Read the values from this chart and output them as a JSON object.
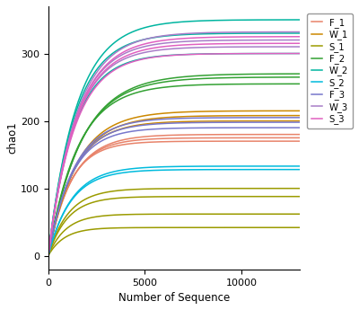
{
  "series": [
    {
      "label": "F_1",
      "color": "#E8836A",
      "curves": [
        {
          "A": 170,
          "k": 0.0009
        },
        {
          "A": 175,
          "k": 0.00085
        },
        {
          "A": 180,
          "k": 0.0008
        }
      ]
    },
    {
      "label": "W_1",
      "color": "#CC8800",
      "curves": [
        {
          "A": 200,
          "k": 0.00075
        },
        {
          "A": 208,
          "k": 0.0007
        },
        {
          "A": 215,
          "k": 0.00068
        }
      ]
    },
    {
      "label": "S_1",
      "color": "#9B9B00",
      "curves": [
        {
          "A": 42,
          "k": 0.0012
        },
        {
          "A": 62,
          "k": 0.0011
        },
        {
          "A": 88,
          "k": 0.001
        },
        {
          "A": 100,
          "k": 0.00095
        }
      ]
    },
    {
      "label": "F_2",
      "color": "#33A133",
      "curves": [
        {
          "A": 255,
          "k": 0.00065
        },
        {
          "A": 265,
          "k": 0.0006
        },
        {
          "A": 270,
          "k": 0.00058
        }
      ]
    },
    {
      "label": "W_2",
      "color": "#00B5A0",
      "curves": [
        {
          "A": 300,
          "k": 0.00075
        },
        {
          "A": 330,
          "k": 0.00072
        },
        {
          "A": 350,
          "k": 0.00068
        }
      ]
    },
    {
      "label": "S_2",
      "color": "#00BBDD",
      "curves": [
        {
          "A": 128,
          "k": 0.00085
        },
        {
          "A": 133,
          "k": 0.00082
        }
      ]
    },
    {
      "label": "F_3",
      "color": "#7777CC",
      "curves": [
        {
          "A": 190,
          "k": 0.00082
        },
        {
          "A": 198,
          "k": 0.00078
        },
        {
          "A": 205,
          "k": 0.00075
        }
      ]
    },
    {
      "label": "W_3",
      "color": "#A87DC8",
      "curves": [
        {
          "A": 310,
          "k": 0.00072
        },
        {
          "A": 320,
          "k": 0.0007
        },
        {
          "A": 332,
          "k": 0.00068
        }
      ]
    },
    {
      "label": "S_3",
      "color": "#E060C0",
      "curves": [
        {
          "A": 300,
          "k": 0.00073
        },
        {
          "A": 315,
          "k": 0.0007
        },
        {
          "A": 325,
          "k": 0.00068
        }
      ]
    }
  ],
  "xmax": 13000,
  "xlabel": "Number of Sequence",
  "ylabel": "chao1",
  "ylim": [
    -20,
    370
  ],
  "xlim": [
    0,
    13000
  ],
  "xticks": [
    0,
    5000,
    10000
  ],
  "yticks": [
    0,
    100,
    200,
    300
  ],
  "linewidth": 1.1
}
